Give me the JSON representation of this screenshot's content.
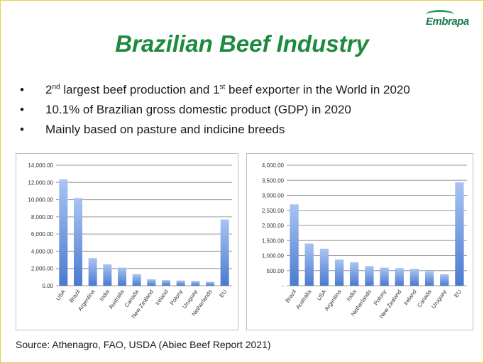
{
  "header": {
    "title": "Brazilian Beef Industry",
    "logo_text": "Embrapa"
  },
  "bullets": [
    {
      "parts": [
        "2",
        "nd",
        " largest beef production and 1",
        "st",
        " beef exporter in the World in 2020"
      ]
    },
    {
      "text": "10.1% of Brazilian gross domestic product (GDP) in 2020"
    },
    {
      "text": "Mainly based on pasture and indicine breeds"
    }
  ],
  "bullet_symbol": "•",
  "source": "Source: Athenagro, FAO, USDA (Abiec Beef Report 2021)",
  "colors": {
    "title": "#1d8a3e",
    "bar_top": "#a9c4f2",
    "bar_bottom": "#4a7ad0",
    "grid": "#999999"
  },
  "chart_data": [
    {
      "type": "bar",
      "title": "",
      "xlabel": "",
      "ylabel": "",
      "categories": [
        "USA",
        "Brazil",
        "Argentina",
        "India",
        "Australia",
        "Canada",
        "New Zealand",
        "Ireland",
        "Polony",
        "Uruguay",
        "Netherlands",
        "EU"
      ],
      "values": [
        12350,
        10200,
        3200,
        2500,
        2100,
        1350,
        750,
        650,
        600,
        550,
        450,
        7700
      ],
      "ylim": [
        0,
        14000
      ],
      "yticks": [
        "0.00",
        "2,000.00",
        "4,000.00",
        "6,000.00",
        "8,000.00",
        "10,000.00",
        "12,000.00",
        "14,000.00"
      ],
      "grid": true,
      "legend": "none"
    },
    {
      "type": "bar",
      "title": "",
      "xlabel": "",
      "ylabel": "",
      "categories": [
        "Brazil",
        "Australia",
        "USA",
        "Argentina",
        "India",
        "Netherlands",
        "Polony",
        "New Zealand",
        "Ireland",
        "Canada",
        "Uruguay",
        "EU"
      ],
      "values": [
        2700,
        1400,
        1230,
        870,
        780,
        650,
        600,
        580,
        560,
        480,
        380,
        3430
      ],
      "ylim": [
        0,
        4000
      ],
      "yticks": [
        "-",
        "500.00",
        "1,000.00",
        "1,500.00",
        "2,000.00",
        "2,500.00",
        "3,000.00",
        "3,500.00",
        "4,000.00"
      ],
      "grid": true,
      "legend": "none"
    }
  ]
}
